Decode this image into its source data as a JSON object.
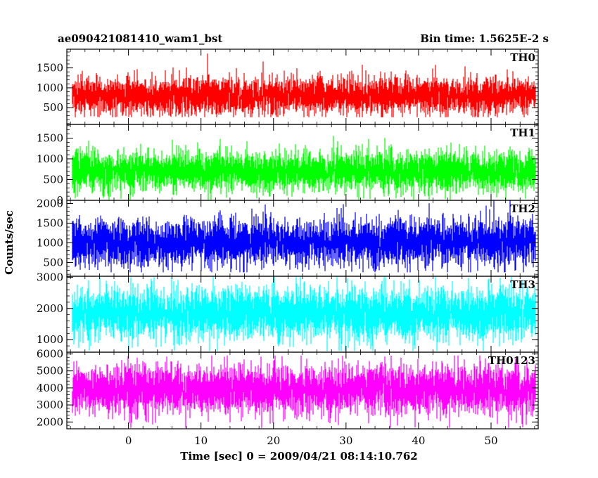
{
  "header": {
    "left_title": "ae090421081410_wam1_bst",
    "right_title": "Bin time: 1.5625E-2 s"
  },
  "ylabel": "Counts/sec",
  "xlabel": "Time [sec] 0 = 2009/04/21 08:14:10.762",
  "chart_data": {
    "type": "line",
    "x_range": [
      -8.5,
      56.5
    ],
    "x_ticks": [
      0,
      10,
      20,
      30,
      40,
      50
    ],
    "x_tick_labels": [
      "0",
      "10",
      "20",
      "30",
      "40",
      "50"
    ],
    "data_x_range": [
      -7.7,
      56.1
    ],
    "bin_time_s": 0.015625,
    "panels": [
      {
        "name": "TH0",
        "color": "#ff0000",
        "ylim": [
          80,
          1970
        ],
        "ticks": [
          500,
          1000,
          1500
        ],
        "tick_labels": [
          "500",
          "1000",
          "1500"
        ],
        "mean": 800,
        "spread": 230,
        "floor": 260,
        "ceil": 1970,
        "seed": 11
      },
      {
        "name": "TH1",
        "color": "#00ff00",
        "ylim": [
          0,
          1830
        ],
        "ticks": [
          0,
          500,
          1000,
          1500
        ],
        "tick_labels": [
          "0",
          "500",
          "1000",
          "1500"
        ],
        "mean": 700,
        "spread": 240,
        "floor": 0,
        "ceil": 1830,
        "seed": 23
      },
      {
        "name": "TH2",
        "color": "#0000ff",
        "ylim": [
          150,
          2080
        ],
        "ticks": [
          500,
          1000,
          1500,
          2000
        ],
        "tick_labels": [
          "500",
          "1000",
          "1500",
          "2000"
        ],
        "mean": 1000,
        "spread": 290,
        "floor": 250,
        "ceil": 2080,
        "seed": 37
      },
      {
        "name": "TH3",
        "color": "#00ffff",
        "ylim": [
          600,
          3030
        ],
        "ticks": [
          1000,
          2000,
          3000
        ],
        "tick_labels": [
          "1000",
          "2000",
          "3000"
        ],
        "mean": 1850,
        "spread": 420,
        "floor": 640,
        "ceil": 3030,
        "seed": 53
      },
      {
        "name": "TH0123",
        "color": "#ff00ff",
        "ylim": [
          1600,
          6100
        ],
        "ticks": [
          2000,
          3000,
          4000,
          5000,
          6000
        ],
        "tick_labels": [
          "2000",
          "3000",
          "4000",
          "5000",
          "6000"
        ],
        "mean": 3900,
        "spread": 720,
        "floor": 1650,
        "ceil": 5900,
        "seed": 71
      }
    ]
  }
}
